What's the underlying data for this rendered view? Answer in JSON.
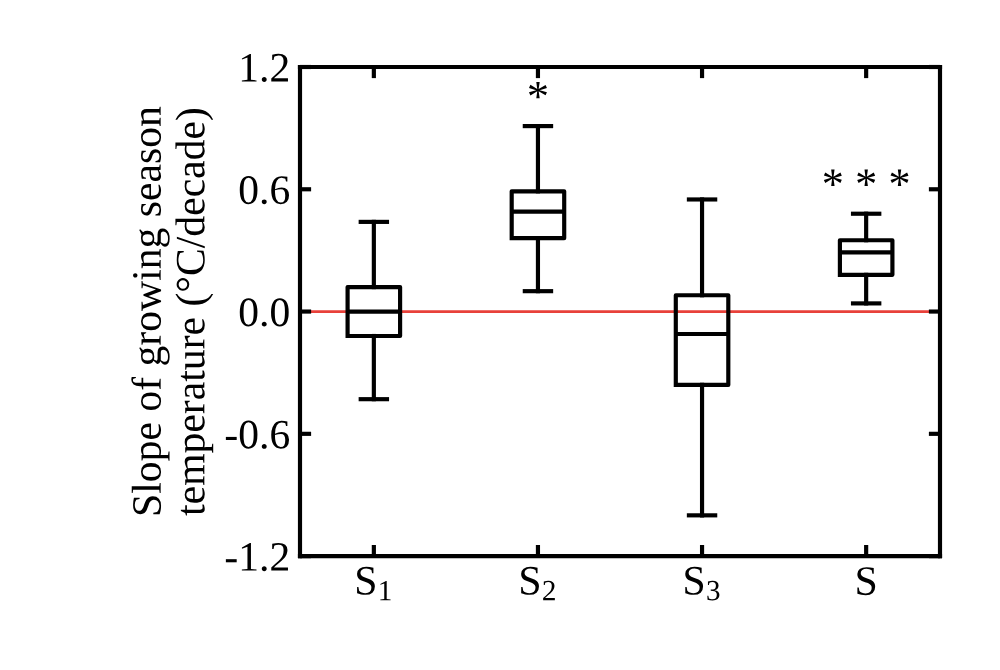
{
  "chart_data": {
    "type": "box",
    "categories": [
      "S$_{1}$",
      "S$_{2}$",
      "S$_{3}$",
      "S"
    ],
    "boxes": [
      {
        "low": -0.43,
        "q1": -0.12,
        "median": 0.0,
        "q3": 0.12,
        "high": 0.44
      },
      {
        "low": 0.1,
        "q1": 0.36,
        "median": 0.49,
        "q3": 0.59,
        "high": 0.91
      },
      {
        "low": -1.0,
        "q1": -0.36,
        "median": -0.11,
        "q3": 0.08,
        "high": 0.55
      },
      {
        "low": 0.04,
        "q1": 0.18,
        "median": 0.29,
        "q3": 0.35,
        "high": 0.48
      }
    ],
    "color": "#000000",
    "ylabel": "Slope of growing season\ntemperature (°C/decade)",
    "ylim": [
      -1.2,
      1.2
    ],
    "yticks": [
      {
        "value": -1.2,
        "label": "-1.2"
      },
      {
        "value": -0.6,
        "label": "-0.6"
      },
      {
        "value": 0.0,
        "label": "0.0"
      },
      {
        "value": 0.6,
        "label": "0.6"
      },
      {
        "value": 1.2,
        "label": "1.2"
      }
    ],
    "ref_lines": [
      {
        "axis": "y",
        "value": 0.0,
        "color": "#e8413a"
      }
    ],
    "annotations": [
      {
        "text": "*",
        "x": "S$_{2}$",
        "y": 0.91
      },
      {
        "text": "* * *",
        "x": "S",
        "y": 0.48
      }
    ],
    "grid": false,
    "legend": false
  }
}
